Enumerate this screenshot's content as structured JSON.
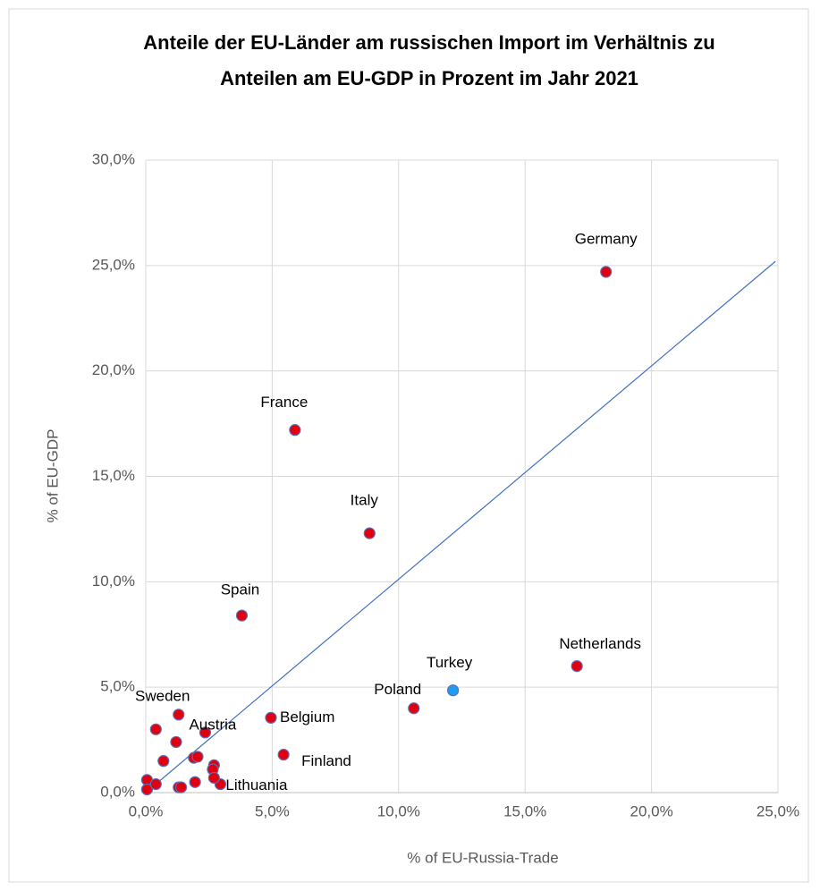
{
  "chart_data": {
    "type": "scatter",
    "title": "Anteile der EU-Länder am russischen Import im Verhältnis zu Anteilen am EU-GDP in Prozent im Jahr 2021",
    "x_label": "% of  EU-Russia-Trade",
    "y_label": "% of EU-GDP",
    "xlim": [
      0,
      25
    ],
    "ylim": [
      0,
      30
    ],
    "xticks": [
      {
        "value": 0,
        "label": "0,0%"
      },
      {
        "value": 5,
        "label": "5,0%"
      },
      {
        "value": 10,
        "label": "10,0%"
      },
      {
        "value": 15,
        "label": "15,0%"
      },
      {
        "value": 20,
        "label": "20,0%"
      },
      {
        "value": 25,
        "label": "25,0%"
      }
    ],
    "yticks": [
      {
        "value": 0,
        "label": "0,0%"
      },
      {
        "value": 5,
        "label": "5,0%"
      },
      {
        "value": 10,
        "label": "10,0%"
      },
      {
        "value": 15,
        "label": "15,0%"
      },
      {
        "value": 20,
        "label": "20,0%"
      },
      {
        "value": 25,
        "label": "25,0%"
      },
      {
        "value": 30,
        "label": "30,0%"
      }
    ],
    "grid": true,
    "series": [
      {
        "color": "#e00010",
        "labels": [
          "Germany",
          "France",
          "Italy",
          "Spain",
          "Netherlands",
          "Poland",
          "Belgium",
          "Finland",
          "Sweden",
          "Austria",
          "Lithuania",
          null,
          null,
          null,
          null,
          null,
          null,
          null,
          null,
          null,
          null,
          null,
          null,
          null,
          null
        ],
        "x": [
          18.2,
          5.9,
          8.85,
          3.8,
          17.05,
          10.6,
          4.95,
          5.45,
          1.3,
          2.35,
          2.95,
          0.4,
          1.2,
          0.7,
          1.9,
          2.05,
          2.7,
          2.65,
          2.7,
          1.95,
          1.3,
          1.4,
          0.05,
          0.05,
          0.4
        ],
        "y": [
          24.7,
          17.2,
          12.3,
          8.4,
          6.0,
          4.0,
          3.55,
          1.8,
          3.7,
          2.85,
          0.4,
          3.0,
          2.4,
          1.5,
          1.65,
          1.7,
          1.3,
          1.1,
          0.7,
          0.5,
          0.25,
          0.25,
          0.6,
          0.15,
          0.4
        ]
      },
      {
        "color": "#1e9cf0",
        "labels": [
          "Turkey"
        ],
        "x": [
          12.15
        ],
        "y": [
          4.85
        ]
      }
    ],
    "trendline": {
      "color": "#4472c4",
      "x": [
        0,
        24.9
      ],
      "y": [
        0,
        25.2
      ]
    }
  }
}
